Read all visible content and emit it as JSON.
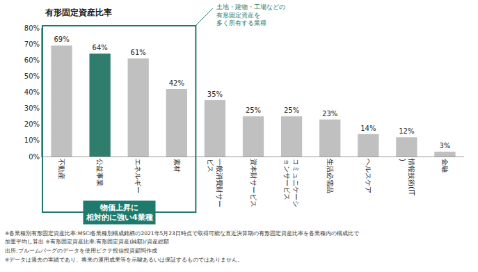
{
  "chart_data": {
    "type": "bar",
    "title": "有形固定資産比率",
    "categories": [
      "不動産",
      "公益事業",
      "エネルギー",
      "素材",
      "一般消費財サービス",
      "資本財サービス",
      "コミュニケーションサービス",
      "生活必需品",
      "ヘルスケア",
      "情報技術(IT)",
      "金融"
    ],
    "values": [
      69,
      64,
      61,
      42,
      35,
      25,
      25,
      23,
      14,
      12,
      3
    ],
    "value_labels": [
      "69%",
      "64%",
      "61%",
      "42%",
      "35%",
      "25%",
      "25%",
      "23%",
      "14%",
      "12%",
      "3%"
    ],
    "colors": [
      "#c0c0c0",
      "#2f7d6d",
      "#c0c0c0",
      "#c0c0c0",
      "#c0c0c0",
      "#c0c0c0",
      "#c0c0c0",
      "#c0c0c0",
      "#c0c0c0",
      "#c0c0c0",
      "#c0c0c0"
    ],
    "ylim": [
      0,
      80
    ],
    "yticks": [
      {
        "value": 0,
        "label": "0%"
      },
      {
        "value": 10,
        "label": "10%"
      },
      {
        "value": 20,
        "label": "20%"
      },
      {
        "value": 30,
        "label": "30%"
      },
      {
        "value": 40,
        "label": "40%"
      },
      {
        "value": 50,
        "label": "50%"
      },
      {
        "value": 60,
        "label": "60%"
      },
      {
        "value": 70,
        "label": "70%"
      },
      {
        "value": 80,
        "label": "80%"
      }
    ],
    "grid": false,
    "data_labels": true,
    "annotations": [
      [
        "土地・建物・工場などの",
        "有形固定資産を",
        "多く所有する業種"
      ],
      [
        "物価上昇に",
        "相対的に強い4業種"
      ]
    ],
    "footnotes": [
      "※各業種別有形固定資産比率:MSCI各業種別構成銘柄の2021年5月23日時点で取得可能な直近決算期の有形固定資産比率を各業種内の構成比で",
      "加重平均し算出 ※有形固定資産比率:有形固定資産(純額)/資産総額",
      "出所:ブルームバーグのデータを使用ピクテ投信投資顧問作成",
      "※データは過去の実績であり、将来の運用成果等を示唆あるいは保証するものではありません。"
    ]
  }
}
